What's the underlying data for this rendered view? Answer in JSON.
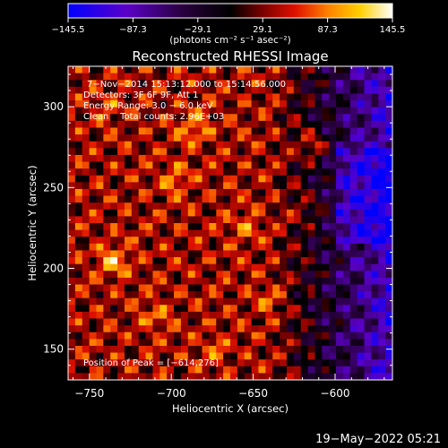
{
  "chart_data": {
    "type": "heatmap",
    "title": "Reconstructed RHESSI Image",
    "xlabel": "Heliocentric X (arcsec)",
    "ylabel": "Heliocentric Y (arcsec)",
    "xlim": [
      -763,
      -565
    ],
    "ylim": [
      131,
      325
    ],
    "xticks": [
      -750,
      -700,
      -650,
      -600
    ],
    "xtick_labels": [
      "−750",
      "−700",
      "−650",
      "−600"
    ],
    "yticks": [
      150,
      200,
      250,
      300
    ],
    "ytick_labels": [
      "150",
      "200",
      "250",
      "300"
    ],
    "colorbar": {
      "ticks": [
        -145.5,
        -87.3,
        -29.1,
        29.1,
        87.3,
        145.5
      ],
      "tick_labels": [
        "−145.5",
        "−87.3",
        "−29.1",
        "29.1",
        "87.3",
        "145.5"
      ],
      "label": "(photons cm⁻² s⁻¹ asec⁻²)",
      "colors": [
        "#0000ff",
        "#5a00c8",
        "#2a0040",
        "#000000",
        "#7a0000",
        "#e01000",
        "#ff8000",
        "#ffd000",
        "#ffffff"
      ]
    },
    "annotations": [
      "7−Nov−2014 15:13:12.000 to 15:14:56.000",
      "Detectors: 3F 6F 9F, Att 1",
      "Energy Range: 3.0 − 6.0 keV",
      "Clean    Total counts: 2.96E+03",
      "Position of Peak = [−614,276]"
    ],
    "peak": [
      -614,
      276
    ],
    "value_range": [
      -145.5,
      145.5
    ],
    "field": "clean-image-texture"
  },
  "footer": {
    "date": "19−May−2022 05:21"
  }
}
